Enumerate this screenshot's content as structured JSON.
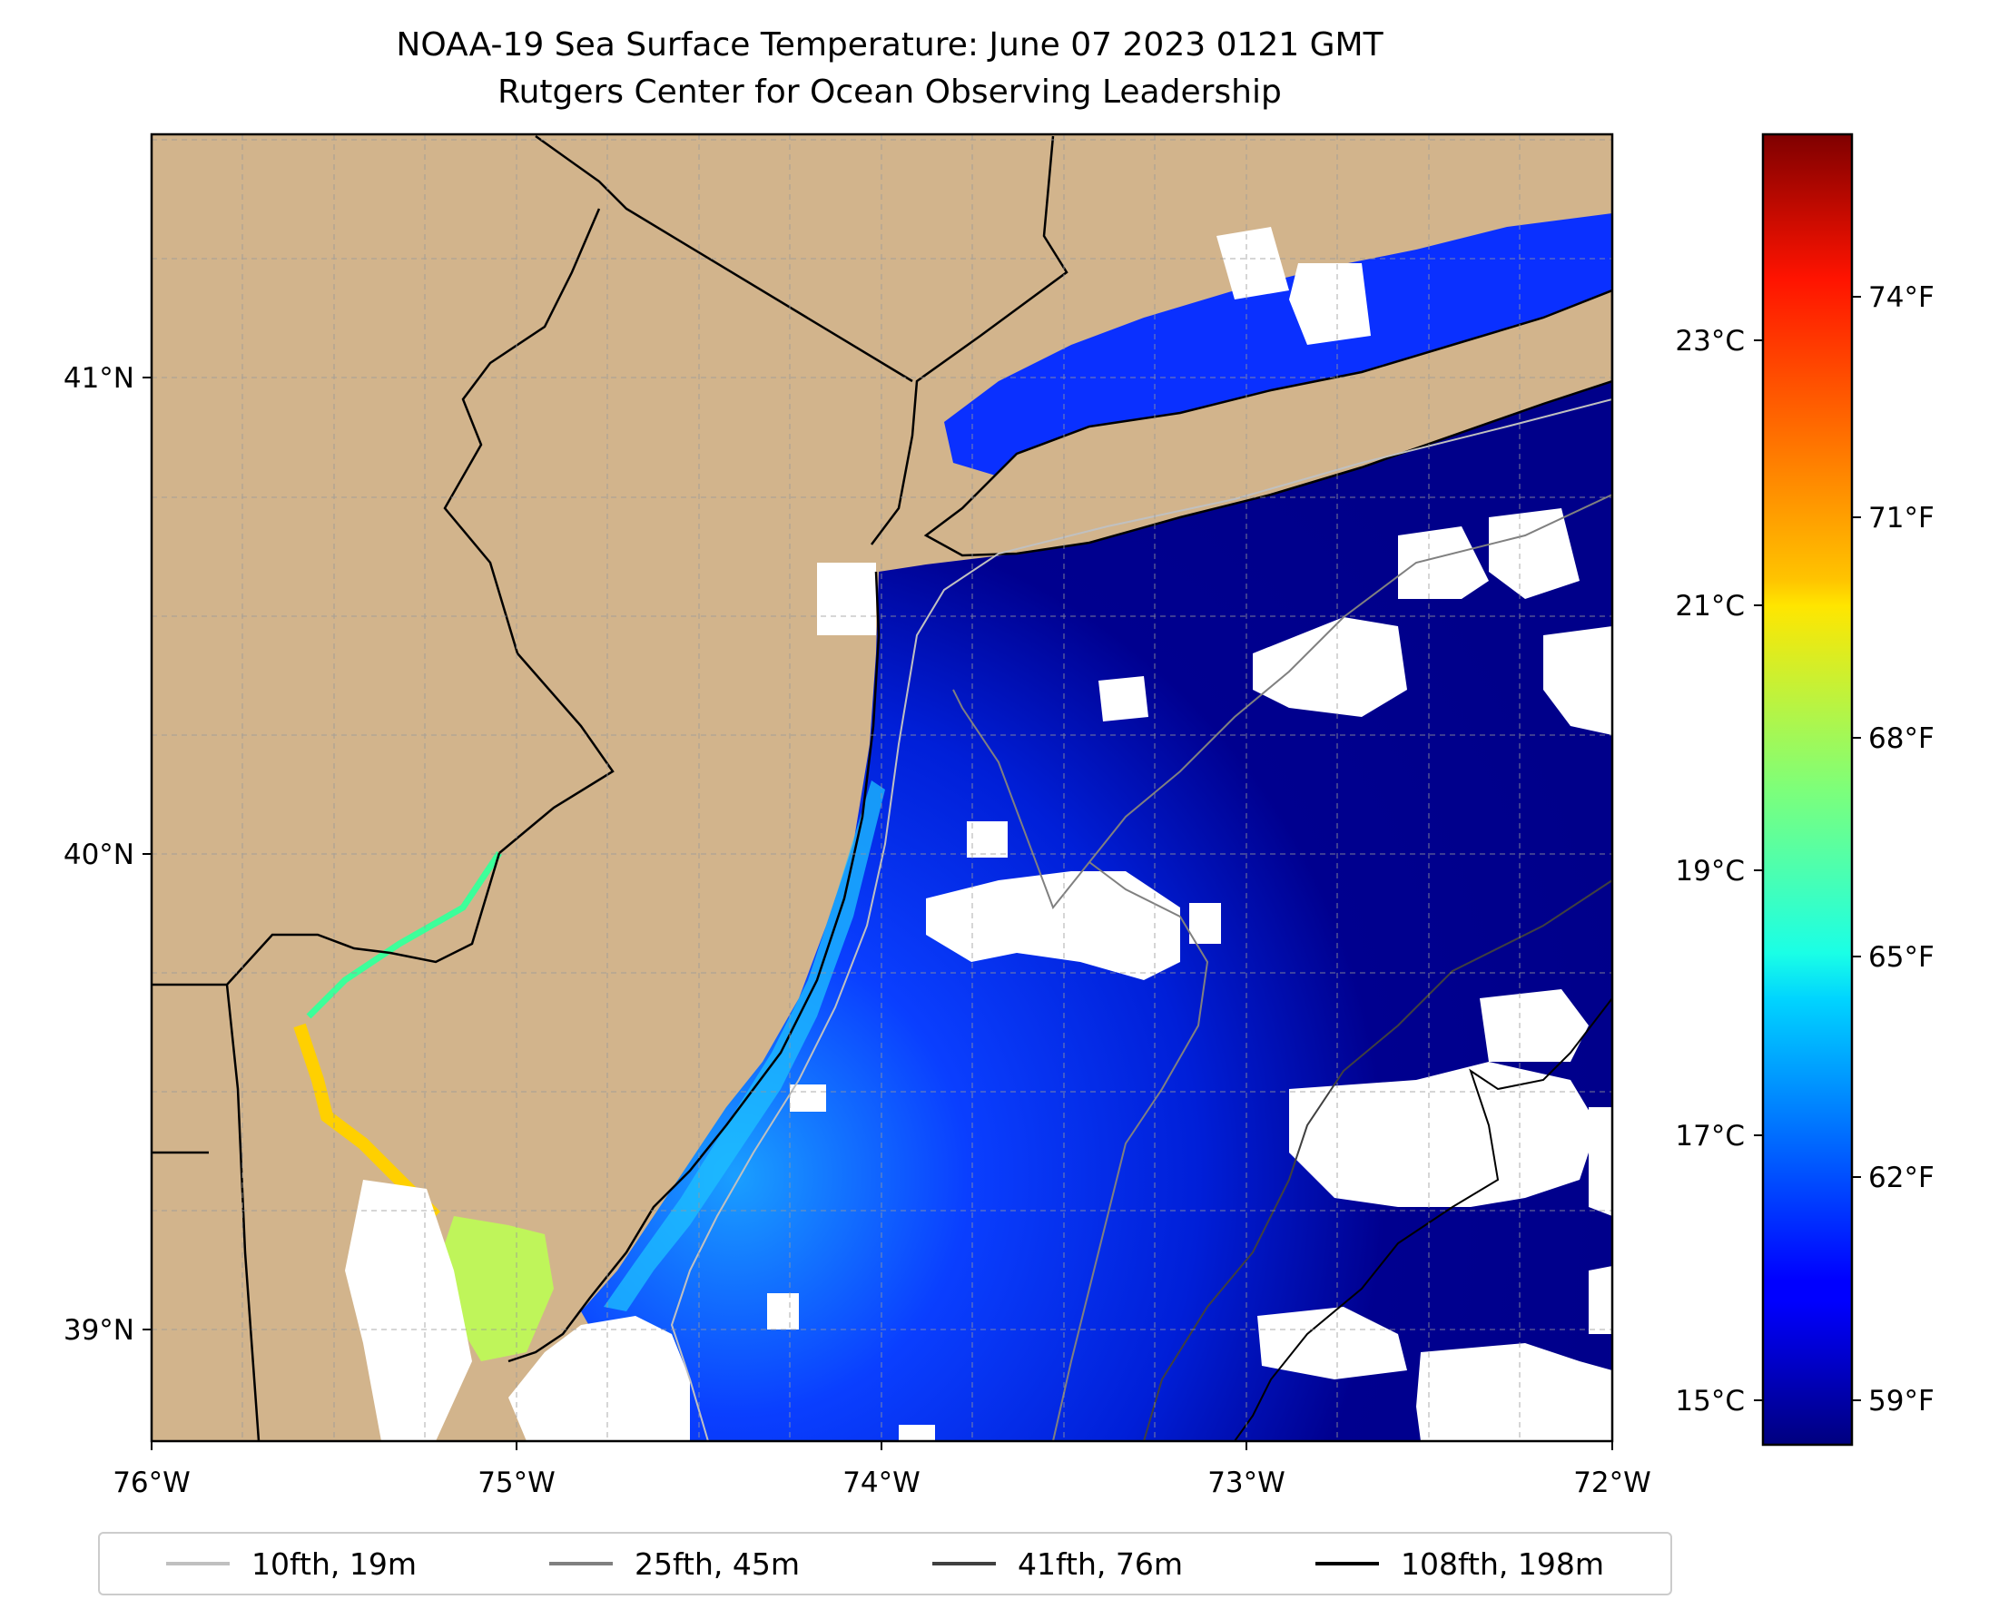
{
  "title": "NOAA-19 Sea Surface Temperature: June 07 2023 0121 GMT",
  "subtitle": "Rutgers Center for Ocean Observing Leadership",
  "map": {
    "land_color": "#d2b48c",
    "no_data_color": "#ffffff",
    "lon_range": [
      -76,
      -72
    ],
    "lat_range": [
      38.75,
      41.55
    ],
    "lon_ticks": [
      {
        "value": -76,
        "label": "76°W"
      },
      {
        "value": -75,
        "label": "75°W"
      },
      {
        "value": -74,
        "label": "74°W"
      },
      {
        "value": -73,
        "label": "73°W"
      },
      {
        "value": -72,
        "label": "72°W"
      }
    ],
    "lat_ticks": [
      {
        "value": 41,
        "label": "41°N"
      },
      {
        "value": 40,
        "label": "40°N"
      },
      {
        "value": 39,
        "label": "39°N"
      }
    ],
    "gridlines": true
  },
  "colorbar": {
    "colormap": "jet",
    "celsius_ticks": [
      "15°C",
      "17°C",
      "19°C",
      "21°C",
      "23°C"
    ],
    "fahrenheit_ticks": [
      "59°F",
      "62°F",
      "65°F",
      "68°F",
      "71°F",
      "74°F"
    ]
  },
  "legend": [
    {
      "label": "10fth, 19m",
      "color": "#c0c0c0"
    },
    {
      "label": "25fth, 45m",
      "color": "#808080"
    },
    {
      "label": "41fth, 76m",
      "color": "#404040"
    },
    {
      "label": "108fth, 198m",
      "color": "#000000"
    }
  ],
  "chart_data": {
    "type": "heatmap",
    "title": "NOAA-19 Sea Surface Temperature: June 07 2023 0121 GMT",
    "subtitle": "Rutgers Center for Ocean Observing Leadership",
    "x_axis": {
      "min": -76,
      "max": -72,
      "unit": "degrees longitude"
    },
    "y_axis": {
      "min": 38.75,
      "max": 41.55,
      "unit": "degrees latitude"
    },
    "colorbar_celsius": {
      "min": 14.5,
      "max": 24.5,
      "ticks": [
        15,
        17,
        19,
        21,
        23
      ]
    },
    "colorbar_fahrenheit": {
      "ticks": [
        59,
        62,
        65,
        68,
        71,
        74
      ]
    },
    "grid": true,
    "legend_location": "bottom"
  }
}
